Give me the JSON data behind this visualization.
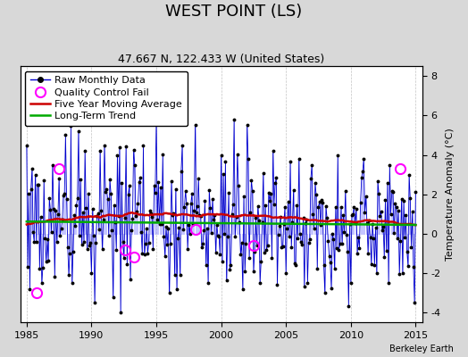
{
  "title": "WEST POINT (LS)",
  "subtitle": "47.667 N, 122.433 W (United States)",
  "ylabel": "Temperature Anomaly (°C)",
  "credit": "Berkeley Earth",
  "xlim": [
    1984.5,
    2015.5
  ],
  "ylim": [
    -4.5,
    8.5
  ],
  "yticks": [
    -4,
    -2,
    0,
    2,
    4,
    6,
    8
  ],
  "xticks": [
    1985,
    1990,
    1995,
    2000,
    2005,
    2010,
    2015
  ],
  "fig_bg_color": "#d8d8d8",
  "plot_bg_color": "#ffffff",
  "raw_line_color": "#0000cc",
  "raw_fill_color": "#8888ff",
  "raw_marker_color": "#000000",
  "ma_color": "#cc0000",
  "trend_color": "#00aa00",
  "qc_fail_color": "#ff00ff",
  "grid_color": "#aaaaaa",
  "title_fontsize": 13,
  "subtitle_fontsize": 9,
  "legend_fontsize": 8,
  "axis_fontsize": 8,
  "qc_years": [
    1985.75,
    1987.5,
    1992.58,
    1993.25,
    1998.0,
    2002.5,
    2013.83
  ],
  "qc_vals": [
    -3.0,
    3.3,
    -0.8,
    -1.2,
    0.2,
    -0.6,
    3.3
  ]
}
